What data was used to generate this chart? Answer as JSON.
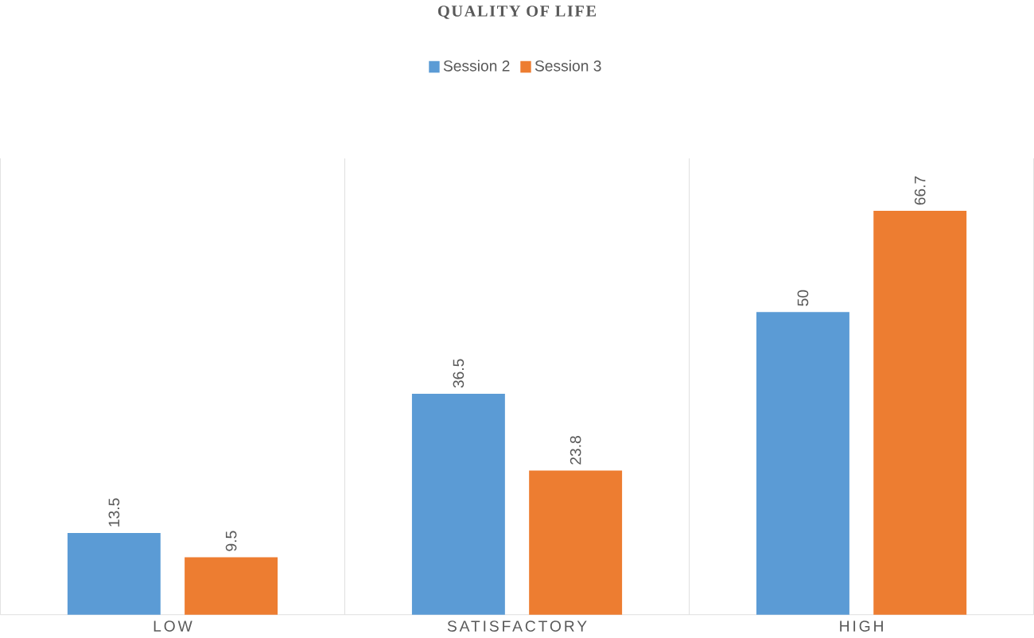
{
  "chart_data": {
    "type": "bar",
    "title": "QUALITY OF LIFE",
    "categories": [
      "LOW",
      "SATISFACTORY",
      "HIGH"
    ],
    "series": [
      {
        "name": "Session 2",
        "color": "#5b9bd5",
        "values": [
          13.5,
          36.5,
          50
        ]
      },
      {
        "name": "Session 3",
        "color": "#ed7d31",
        "values": [
          9.5,
          23.8,
          66.7
        ]
      }
    ],
    "data_labels": true,
    "grid": "x",
    "legend": "top"
  }
}
